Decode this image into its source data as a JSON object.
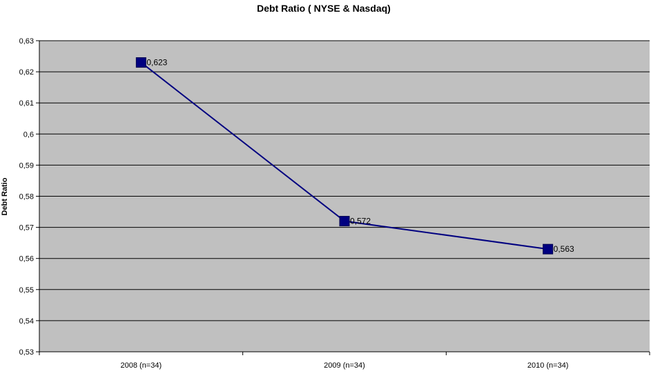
{
  "chart_data": {
    "type": "line",
    "title": "Debt Ratio ( NYSE & Nasdaq)",
    "xlabel": "",
    "ylabel": "Debt Ratio",
    "categories": [
      "2008 (n=34)",
      "2009 (n=34)",
      "2010 (n=34)"
    ],
    "series": [
      {
        "values": [
          0.623,
          0.572,
          0.563
        ],
        "data_labels": [
          "0,623",
          "0,572",
          "0,563"
        ],
        "color": "#000080",
        "marker": "square"
      }
    ],
    "ylim": [
      0.53,
      0.63
    ],
    "yticks": [
      0.53,
      0.54,
      0.55,
      0.56,
      0.57,
      0.58,
      0.59,
      0.6,
      0.61,
      0.62,
      0.63
    ],
    "ytick_labels": [
      "0,53",
      "0,54",
      "0,55",
      "0,56",
      "0,57",
      "0,58",
      "0,59",
      "0,6",
      "0,61",
      "0,62",
      "0,63"
    ],
    "grid": true,
    "legend": "none",
    "plot_background": "#C0C0C0"
  }
}
